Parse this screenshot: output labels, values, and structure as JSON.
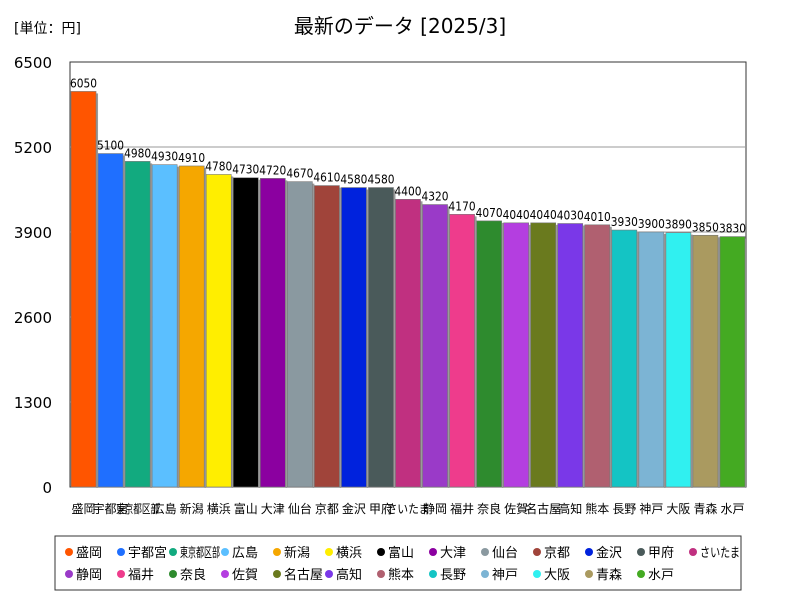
{
  "unit_label": "[単位：円]",
  "chart_data": {
    "type": "bar",
    "title": "最新のデータ [2025/3]",
    "ylabel": "",
    "xlabel": "",
    "ylim": [
      0,
      6500
    ],
    "yticks": [
      0,
      1300,
      2600,
      3900,
      5200,
      6500
    ],
    "grid": true,
    "legend_position": "bottom",
    "categories": [
      "盛岡",
      "宇都宮",
      "東京都区部",
      "広島",
      "新潟",
      "横浜",
      "富山",
      "大津",
      "仙台",
      "京都",
      "金沢",
      "甲府",
      "さいたま",
      "静岡",
      "福井",
      "奈良",
      "佐賀",
      "名古屋",
      "高知",
      "熊本",
      "長野",
      "神戸",
      "大阪",
      "青森",
      "水戸"
    ],
    "values": [
      6050,
      5100,
      4980,
      4930,
      4910,
      4780,
      4730,
      4720,
      4670,
      4610,
      4580,
      4580,
      4400,
      4320,
      4170,
      4070,
      4040,
      4040,
      4030,
      4010,
      3930,
      3900,
      3890,
      3850,
      3830
    ],
    "value_labels": [
      "6050",
      "5100",
      "4980",
      "4930",
      "4910",
      "4780",
      "4730",
      "4720",
      "4670",
      "4610",
      "4580",
      "4580",
      "4400",
      "4320",
      "4170",
      "4070",
      "4040",
      "4040",
      "4030",
      "4010",
      "3930",
      "3900",
      "3890",
      "3850",
      "3830"
    ],
    "colors": [
      "#ff5500",
      "#1f6fff",
      "#12aa7f",
      "#5bbfff",
      "#f5a700",
      "#ffee00",
      "#000000",
      "#8b00a0",
      "#8a99a0",
      "#a0443a",
      "#0022dd",
      "#4a5a5a",
      "#c03080",
      "#9a3ac8",
      "#ee3c8c",
      "#2e8b2e",
      "#b43ee0",
      "#6a7a1e",
      "#7a38e8",
      "#b06070",
      "#14c4c4",
      "#7cb4d4",
      "#30f0f0",
      "#aa9a60",
      "#44aa22"
    ]
  }
}
